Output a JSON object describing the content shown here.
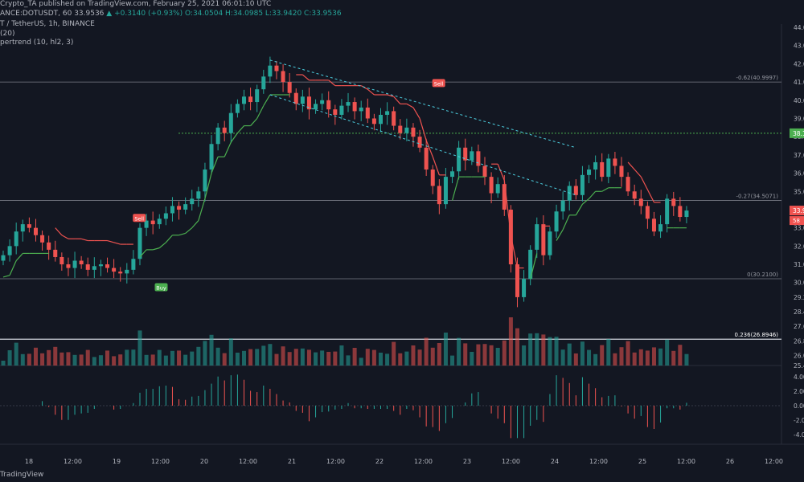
{
  "header": {
    "line1": "Crypto_TA published on TradingView.com, February 25, 2021 06:01:10 UTC",
    "line2_symbol": "ANCE:DOTUSDT, 60",
    "line2_price": "33.9536",
    "line2_change": "▲ +0.3140 (+0.93%)",
    "line2_ohlc": "O:34.0504  H:34.0985  L:33.9420  C:33.9536",
    "line3": "T / TetherUS, 1h, BINANCE",
    "line4": "(20)",
    "line5": "pertrend (10, hl2, 3)"
  },
  "branding": "TradingView",
  "colors": {
    "background": "#131722",
    "up": "#26a69a",
    "down": "#ef5350",
    "supertrend_up": "#4caf50",
    "supertrend_down": "#ef5350",
    "channel": "#4dd0e1",
    "volume_ma": "#e6a96b"
  },
  "chart_data": {
    "type": "candlestick",
    "price_axis_ticks": [
      "44.00",
      "43.00",
      "42.00",
      "41.00",
      "40.00",
      "39.00",
      "38.00",
      "37.00",
      "36.00",
      "35.00",
      "34.00",
      "33.00",
      "32.00",
      "31.00",
      "30.00",
      "29.20",
      "28.40",
      "27.60",
      "26.80",
      "26.00",
      "25.45"
    ],
    "oscillator_axis_ticks": [
      "4.000",
      "2.000",
      "0.000",
      "-2.000",
      "-4.000"
    ],
    "time_axis_ticks": [
      "18",
      "12:00",
      "19",
      "12:00",
      "20",
      "12:00",
      "21",
      "12:00",
      "22",
      "12:00",
      "23",
      "12:00",
      "24",
      "12:00",
      "25",
      "12:00",
      "26",
      "12:00"
    ],
    "fib_levels": [
      {
        "label": "-0.62(40.9997)",
        "price": 40.9997
      },
      {
        "label": "-0.27(34.5071)",
        "price": 34.5071
      },
      {
        "label": "0(30.2100)",
        "price": 30.21
      },
      {
        "label": "0.236(26.8946)",
        "price": 26.8946
      }
    ],
    "horizontal_dotted_level": {
      "label": "38.19",
      "price": 38.19
    },
    "last_price_label": "33.95",
    "last_price_sub_label": "58",
    "signals": [
      {
        "label": "Sell",
        "time": "19 06:00",
        "price": 33.5
      },
      {
        "label": "Buy",
        "time": "19 12:00",
        "price": 29.7
      },
      {
        "label": "Sell",
        "time": "22 16:00",
        "price": 40.9
      }
    ],
    "closes_hourly_approx": [
      31.5,
      32.0,
      32.8,
      33.2,
      33.0,
      32.6,
      32.2,
      31.8,
      31.4,
      31.0,
      30.8,
      31.2,
      31.0,
      30.7,
      30.9,
      31.0,
      30.8,
      30.6,
      30.5,
      30.7,
      31.3,
      33.0,
      33.4,
      33.2,
      33.5,
      33.8,
      34.2,
      34.0,
      34.3,
      34.6,
      35.0,
      36.2,
      37.6,
      38.5,
      38.2,
      39.3,
      39.8,
      40.2,
      39.9,
      40.6,
      41.3,
      41.9,
      41.6,
      41.0,
      40.4,
      39.8,
      40.2,
      39.5,
      39.8,
      40.0,
      39.5,
      39.2,
      39.7,
      39.9,
      39.4,
      39.6,
      39.0,
      38.7,
      39.2,
      39.4,
      38.6,
      38.2,
      38.5,
      38.0,
      37.4,
      36.2,
      35.3,
      34.3,
      35.8,
      36.1,
      37.4,
      36.7,
      37.2,
      36.4,
      35.8,
      34.9,
      35.4,
      34.0,
      31.0,
      29.2,
      30.2,
      31.8,
      33.2,
      31.5,
      32.8,
      33.9,
      34.5,
      35.3,
      34.8,
      35.9,
      36.2,
      36.6,
      35.8,
      36.8,
      36.4,
      35.8,
      35.0,
      34.6,
      34.2,
      33.5,
      32.8,
      33.2,
      34.6,
      34.2,
      33.6,
      33.95
    ],
    "price_range": [
      25.45,
      44.0
    ],
    "oscillator_range": [
      -4.8,
      4.8
    ],
    "grid": false,
    "legend": "top-left"
  }
}
